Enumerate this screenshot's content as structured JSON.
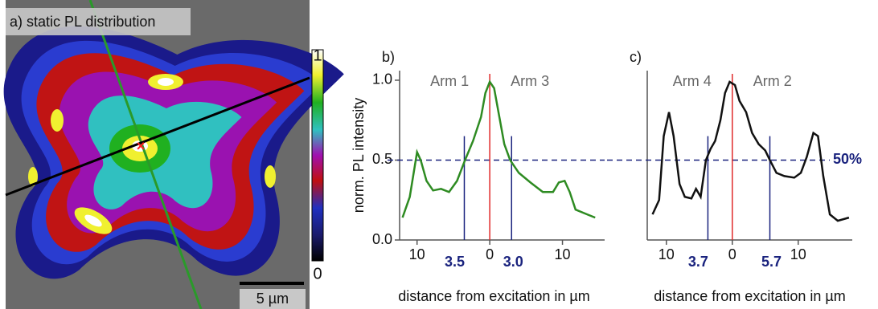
{
  "image_panel": {
    "title": "a) static PL distribution",
    "colorbar_max": "1",
    "colorbar_min": "0",
    "scale_bar": "5 µm"
  },
  "chart_data": [
    {
      "type": "line",
      "panel_label": "b)",
      "ylabel": "norm. PL intensity",
      "xlabel": "distance from excitation in µm",
      "annotations": [
        "Arm 1",
        "Arm 3"
      ],
      "color": "#2e8b22",
      "x": [
        -12,
        -11,
        -10,
        -9.5,
        -8.7,
        -7.8,
        -6.7,
        -5.6,
        -4.5,
        -3.4,
        -2.3,
        -1.2,
        -0.6,
        0,
        0.6,
        1.2,
        2,
        2.8,
        4,
        5.6,
        7.3,
        8.7,
        9.5,
        10.3,
        11,
        11.8,
        13.4,
        14.5
      ],
      "values": [
        0.14,
        0.27,
        0.55,
        0.5,
        0.37,
        0.31,
        0.32,
        0.3,
        0.37,
        0.5,
        0.62,
        0.77,
        0.92,
        0.99,
        0.95,
        0.8,
        0.6,
        0.5,
        0.42,
        0.36,
        0.3,
        0.3,
        0.36,
        0.37,
        0.3,
        0.19,
        0.16,
        0.14
      ],
      "xlim": [
        -12.4,
        15.8
      ],
      "ylim": [
        0,
        1.06
      ],
      "xticks": [
        {
          "value": -10,
          "label": "10"
        },
        0,
        10
      ],
      "yticks": [
        {
          "value": 0,
          "label": "0.0"
        },
        0.5,
        {
          "value": 1,
          "label": "1.0"
        }
      ],
      "center_line": {
        "x": 0,
        "color": "#e02a2a"
      },
      "markers": [
        {
          "x": -3.5,
          "label": "3.5"
        },
        {
          "x": 3,
          "label": "3.0"
        }
      ],
      "marker_color": "#1a237e",
      "threshold": 0.5
    },
    {
      "type": "line",
      "panel_label": "c)",
      "xlabel": "distance from excitation in µm",
      "annotations": [
        "Arm 4",
        "Arm 2"
      ],
      "color": "#111111",
      "x": [
        -12.1,
        -11.1,
        -10.4,
        -9.6,
        -8.9,
        -8,
        -7.2,
        -6.2,
        -5.5,
        -4.8,
        -4,
        -3.3,
        -2.6,
        -1.8,
        -1.1,
        -0.4,
        0.4,
        1.1,
        2.1,
        3,
        4,
        5,
        5.7,
        6.7,
        7.9,
        9.4,
        10.4,
        11.3,
        12.3,
        13,
        13.8,
        14.8,
        16,
        17.7
      ],
      "values": [
        0.16,
        0.25,
        0.65,
        0.8,
        0.65,
        0.35,
        0.27,
        0.26,
        0.32,
        0.27,
        0.5,
        0.57,
        0.62,
        0.75,
        0.92,
        0.99,
        0.97,
        0.87,
        0.8,
        0.67,
        0.6,
        0.56,
        0.5,
        0.42,
        0.4,
        0.39,
        0.42,
        0.52,
        0.67,
        0.65,
        0.4,
        0.16,
        0.12,
        0.14
      ],
      "xlim": [
        -12.9,
        18.2
      ],
      "ylim": [
        0,
        1.06
      ],
      "xticks": [
        {
          "value": -10,
          "label": "10"
        },
        0,
        10
      ],
      "center_line": {
        "x": 0,
        "color": "#e02a2a"
      },
      "markers": [
        {
          "x": -3.7,
          "label": "3.7"
        },
        {
          "x": 5.7,
          "label": "5.7"
        }
      ],
      "marker_color": "#1a237e",
      "threshold": {
        "value": 0.5,
        "label": "50%"
      }
    }
  ]
}
